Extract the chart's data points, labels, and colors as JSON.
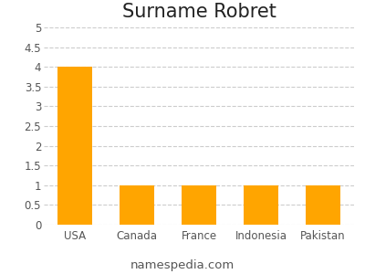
{
  "title": "Surname Robret",
  "categories": [
    "USA",
    "Canada",
    "France",
    "Indonesia",
    "Pakistan"
  ],
  "values": [
    4,
    1,
    1,
    1,
    1
  ],
  "bar_color": "#FFA500",
  "ylim": [
    0,
    5
  ],
  "yticks": [
    0,
    0.5,
    1,
    1.5,
    2,
    2.5,
    3,
    3.5,
    4,
    4.5,
    5
  ],
  "grid_color": "#cccccc",
  "background_color": "#ffffff",
  "footer_text": "namespedia.com",
  "title_fontsize": 15,
  "tick_fontsize": 8.5,
  "footer_fontsize": 9.5,
  "bar_width": 0.55
}
